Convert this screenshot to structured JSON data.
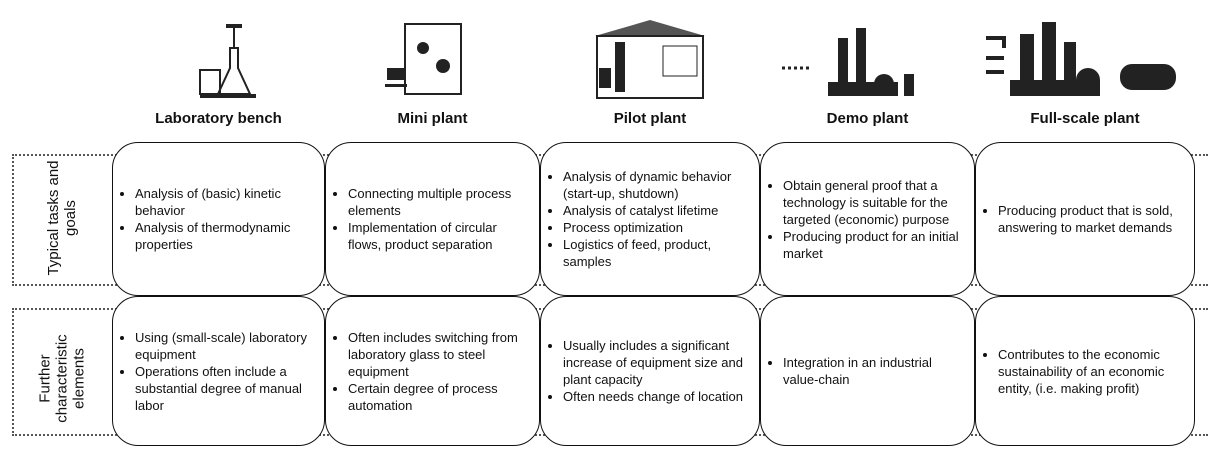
{
  "columns": [
    {
      "title": "Laboratory bench"
    },
    {
      "title": "Mini plant"
    },
    {
      "title": "Pilot plant"
    },
    {
      "title": "Demo plant"
    },
    {
      "title": "Full-scale plant"
    }
  ],
  "rows": [
    {
      "label": "Typical tasks and goals",
      "cells": [
        [
          "Analysis of (basic) kinetic behavior",
          "Analysis of thermodynamic properties"
        ],
        [
          "Connecting multiple process elements",
          "Implementation of circular flows, product separation"
        ],
        [
          "Analysis of dynamic behavior (start-up, shutdown)",
          "Analysis of catalyst lifetime",
          "Process optimization",
          "Logistics of feed, product, samples"
        ],
        [
          "Obtain general proof that a technology is suitable for the targeted (economic) purpose",
          "Producing product for an initial market"
        ],
        [
          "Producing product that is sold, answering to market demands"
        ]
      ]
    },
    {
      "label": "Further characteristic elements",
      "cells": [
        [
          "Using (small-scale) laboratory equipment",
          "Operations often include a substantial degree of manual labor"
        ],
        [
          "Often includes switching from laboratory glass to steel equipment",
          "Certain degree of process automation"
        ],
        [
          "Usually includes a significant increase of equipment size and plant capacity",
          "Often needs change of location"
        ],
        [
          "Integration in an industrial value-chain"
        ],
        [
          "Contributes to the economic sustainability of an economic entity, (i.e. making profit)"
        ]
      ]
    }
  ]
}
